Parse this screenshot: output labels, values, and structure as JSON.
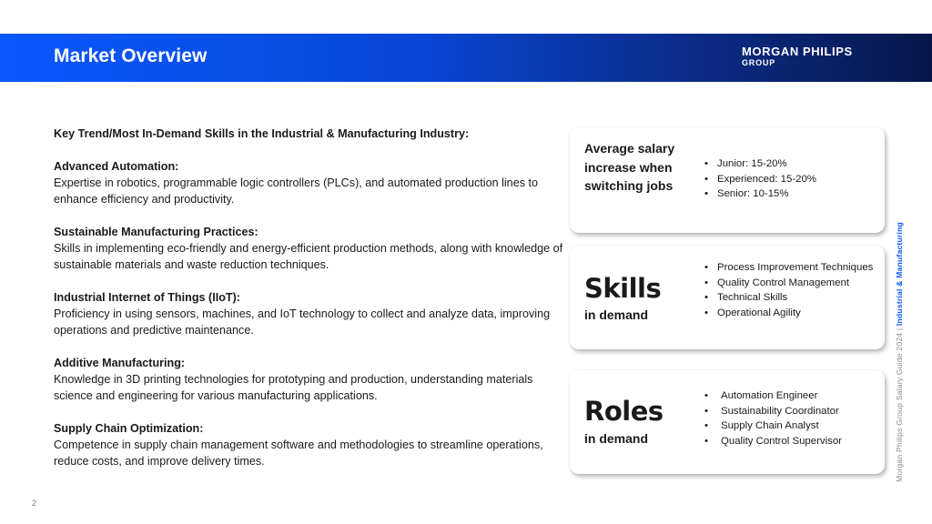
{
  "header": {
    "title": "Market Overview",
    "logo_line1": "MORGAN PHILIPS",
    "logo_line2": "GROUP"
  },
  "content": {
    "heading": "Key Trend/Most In-Demand Skills in the Industrial & Manufacturing Industry:",
    "sections": [
      {
        "title": "Advanced Automation:",
        "body": "Expertise in robotics, programmable logic controllers (PLCs), and automated production lines to enhance efficiency and productivity."
      },
      {
        "title": "Sustainable Manufacturing Practices:",
        "body": "Skills in implementing eco-friendly and energy-efficient production methods, along with knowledge of sustainable materials and waste reduction techniques."
      },
      {
        "title": "Industrial Internet of Things (IIoT):",
        "body": "Proficiency in using sensors, machines, and IoT technology to collect and analyze data, improving operations and predictive maintenance."
      },
      {
        "title": "Additive Manufacturing:",
        "body": "Knowledge in 3D printing technologies for prototyping and production, understanding materials science and engineering for various manufacturing applications."
      },
      {
        "title": "Supply Chain Optimization:",
        "body": "Competence in supply chain management software and methodologies to streamline operations, reduce costs, and improve delivery times."
      }
    ]
  },
  "cards": {
    "salary": {
      "label": "Average salary increase when switching jobs",
      "items": [
        "Junior: 15-20%",
        "Experienced: 15-20%",
        "Senior: 10-15%"
      ]
    },
    "skills": {
      "big": "Skills",
      "sub": "in demand",
      "items": [
        "Process Improvement Techniques",
        "Quality Control Management",
        "Technical Skills",
        "Operational Agility"
      ]
    },
    "roles": {
      "big": "Roles",
      "sub": "in demand",
      "items": [
        "Automation Engineer",
        "Sustainability Coordinator",
        "Supply Chain Analyst",
        "Quality Control Supervisor"
      ]
    }
  },
  "side": {
    "text": "Morgan Philips Group Salary Guide 2024 | ",
    "accent": "Industrial & Manufacturing"
  },
  "page_number": "2"
}
